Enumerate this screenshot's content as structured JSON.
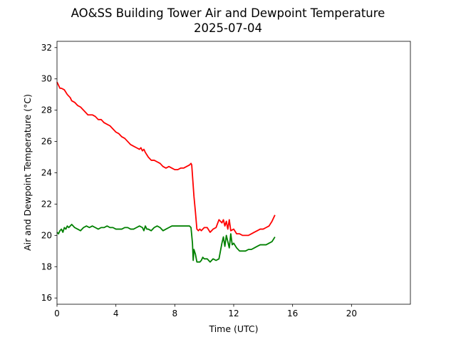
{
  "chart_data": {
    "type": "line",
    "title": "AO&SS Building Tower Air and Dewpoint Temperature",
    "subtitle": "2025-07-04",
    "xlabel": "Time (UTC)",
    "ylabel": "Air and Dewpoint Temperature (°C)",
    "xlim": [
      0,
      24
    ],
    "ylim": [
      15.6,
      32.4
    ],
    "xticks": [
      0,
      4,
      8,
      12,
      16,
      20
    ],
    "yticks": [
      16,
      18,
      20,
      22,
      24,
      26,
      28,
      30,
      32
    ],
    "grid": false,
    "legend": "none",
    "series": [
      {
        "color": "#ff0000",
        "x": [
          0,
          0.1,
          0.2,
          0.3,
          0.5,
          0.7,
          0.9,
          1.0,
          1.2,
          1.4,
          1.6,
          1.8,
          2.0,
          2.1,
          2.2,
          2.4,
          2.6,
          2.8,
          3.0,
          3.2,
          3.4,
          3.6,
          3.8,
          4.0,
          4.2,
          4.4,
          4.6,
          4.8,
          5.0,
          5.2,
          5.4,
          5.6,
          5.7,
          5.8,
          5.9,
          6.0,
          6.2,
          6.4,
          6.6,
          6.8,
          7.0,
          7.2,
          7.4,
          7.6,
          7.8,
          8.0,
          8.2,
          8.4,
          8.6,
          8.8,
          9.0,
          9.1,
          9.15,
          9.3,
          9.4,
          9.5,
          9.6,
          9.7,
          9.8,
          10.0,
          10.2,
          10.4,
          10.6,
          10.8,
          11.0,
          11.2,
          11.3,
          11.4,
          11.5,
          11.6,
          11.7,
          11.8,
          12.0,
          12.2,
          12.4,
          12.6,
          12.8,
          13.0,
          13.2,
          13.4,
          13.6,
          13.8,
          14.0,
          14.2,
          14.4,
          14.6,
          14.8
        ],
        "y": [
          29.8,
          29.6,
          29.4,
          29.4,
          29.3,
          29.0,
          28.8,
          28.6,
          28.5,
          28.3,
          28.2,
          28.0,
          27.8,
          27.7,
          27.7,
          27.7,
          27.6,
          27.4,
          27.4,
          27.2,
          27.1,
          27.0,
          26.8,
          26.6,
          26.5,
          26.3,
          26.2,
          26.0,
          25.8,
          25.7,
          25.6,
          25.5,
          25.6,
          25.4,
          25.5,
          25.3,
          25.0,
          24.8,
          24.8,
          24.7,
          24.6,
          24.4,
          24.3,
          24.4,
          24.3,
          24.2,
          24.2,
          24.3,
          24.3,
          24.4,
          24.5,
          24.6,
          24.5,
          22.5,
          21.5,
          20.4,
          20.3,
          20.4,
          20.3,
          20.5,
          20.5,
          20.2,
          20.4,
          20.5,
          21.0,
          20.8,
          21.0,
          20.6,
          20.9,
          20.4,
          21.0,
          20.3,
          20.4,
          20.1,
          20.1,
          20.0,
          20.0,
          20.0,
          20.1,
          20.2,
          20.3,
          20.4,
          20.4,
          20.5,
          20.6,
          20.9,
          21.3
        ]
      },
      {
        "color": "#008000",
        "x": [
          0,
          0.1,
          0.2,
          0.3,
          0.4,
          0.5,
          0.6,
          0.7,
          0.8,
          1.0,
          1.2,
          1.4,
          1.6,
          1.8,
          2.0,
          2.2,
          2.4,
          2.6,
          2.8,
          3.0,
          3.2,
          3.4,
          3.6,
          3.8,
          4.0,
          4.2,
          4.4,
          4.6,
          4.8,
          5.0,
          5.2,
          5.4,
          5.6,
          5.8,
          5.9,
          6.0,
          6.1,
          6.2,
          6.4,
          6.6,
          6.8,
          7.0,
          7.2,
          7.4,
          7.6,
          7.8,
          8.0,
          8.2,
          8.4,
          8.6,
          8.8,
          9.0,
          9.1,
          9.2,
          9.25,
          9.3,
          9.4,
          9.5,
          9.6,
          9.7,
          9.8,
          9.9,
          10.0,
          10.2,
          10.4,
          10.6,
          10.8,
          11.0,
          11.2,
          11.3,
          11.4,
          11.5,
          11.6,
          11.7,
          11.8,
          11.9,
          12.0,
          12.2,
          12.4,
          12.6,
          12.8,
          13.0,
          13.2,
          13.4,
          13.6,
          13.8,
          14.0,
          14.2,
          14.4,
          14.6,
          14.8
        ],
        "y": [
          20.2,
          20.1,
          20.3,
          20.4,
          20.2,
          20.5,
          20.4,
          20.6,
          20.5,
          20.7,
          20.5,
          20.4,
          20.3,
          20.5,
          20.6,
          20.5,
          20.6,
          20.5,
          20.4,
          20.5,
          20.5,
          20.6,
          20.5,
          20.5,
          20.4,
          20.4,
          20.4,
          20.5,
          20.5,
          20.4,
          20.4,
          20.5,
          20.6,
          20.5,
          20.3,
          20.6,
          20.4,
          20.4,
          20.3,
          20.5,
          20.6,
          20.5,
          20.3,
          20.4,
          20.5,
          20.6,
          20.6,
          20.6,
          20.6,
          20.6,
          20.6,
          20.6,
          20.5,
          19.5,
          18.4,
          19.1,
          18.8,
          18.3,
          18.3,
          18.3,
          18.4,
          18.6,
          18.5,
          18.5,
          18.3,
          18.5,
          18.4,
          18.5,
          19.5,
          19.9,
          19.3,
          20.0,
          19.6,
          19.2,
          20.1,
          19.4,
          19.5,
          19.2,
          19.0,
          19.0,
          19.0,
          19.1,
          19.1,
          19.2,
          19.3,
          19.4,
          19.4,
          19.4,
          19.5,
          19.6,
          19.9
        ]
      }
    ]
  }
}
